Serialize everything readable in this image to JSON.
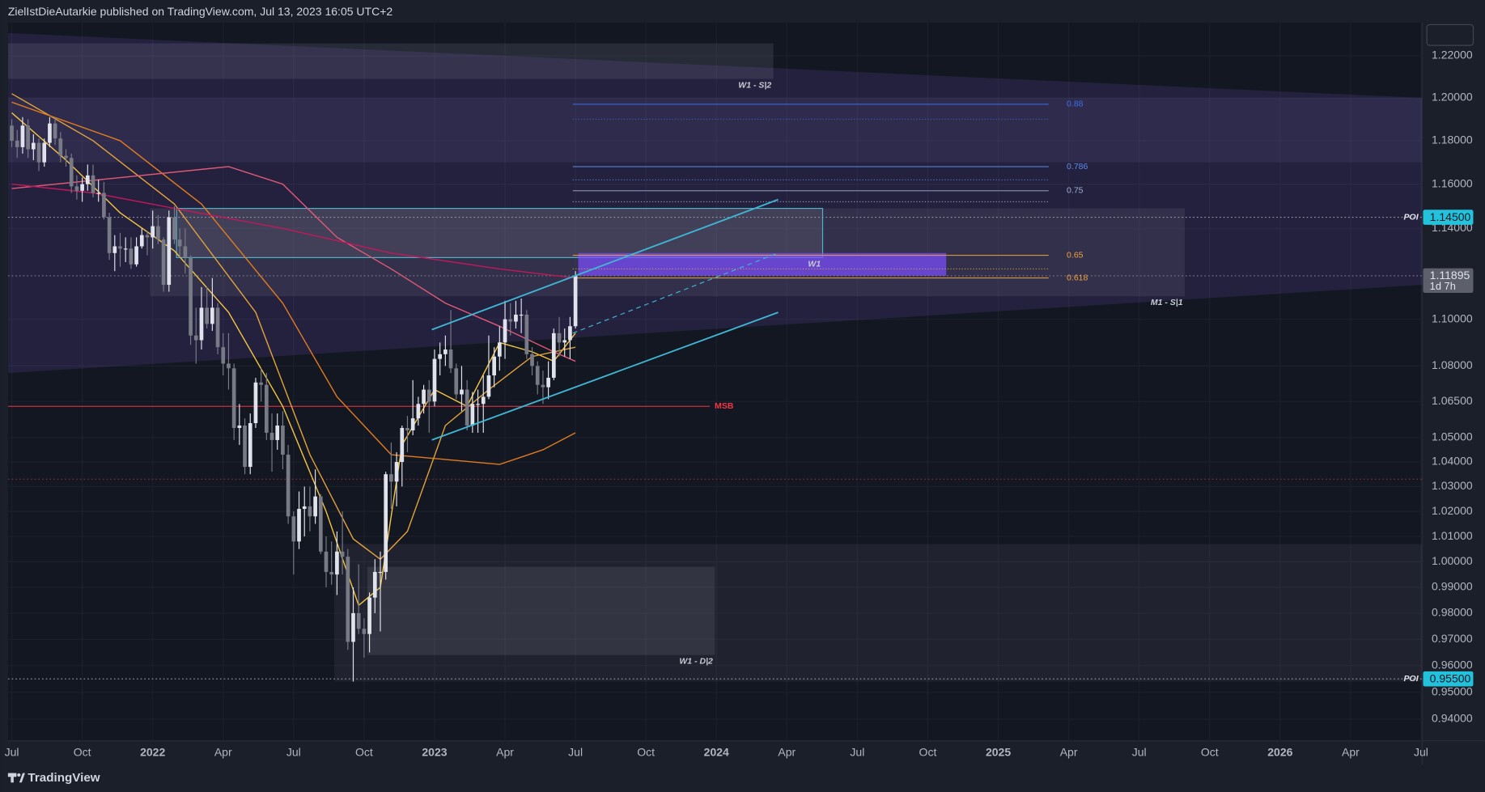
{
  "header": {
    "text": "ZielIstDieAutarkie published on TradingView.com, Jul 13, 2023 16:05 UTC+2"
  },
  "footer": {
    "brand": "TradingView"
  },
  "chart_data": {
    "type": "candlestick",
    "log_scale": true,
    "grid": true,
    "up_color": "#e0e3eb",
    "down_color": "#787b86",
    "xlim": [
      -0.7,
      260.2
    ],
    "xticks": [
      {
        "value": 0,
        "label": "Jul"
      },
      {
        "value": 13,
        "label": "Oct"
      },
      {
        "value": 26,
        "label": "2022"
      },
      {
        "value": 39,
        "label": "Apr"
      },
      {
        "value": 52,
        "label": "Jul"
      },
      {
        "value": 65,
        "label": "Oct"
      },
      {
        "value": 78,
        "label": "2023"
      },
      {
        "value": 91,
        "label": "Apr"
      },
      {
        "value": 104,
        "label": "Jul"
      },
      {
        "value": 117,
        "label": "Oct"
      },
      {
        "value": 130,
        "label": "2024"
      },
      {
        "value": 143,
        "label": "Apr"
      },
      {
        "value": 156,
        "label": "Jul"
      },
      {
        "value": 169,
        "label": "Oct"
      },
      {
        "value": 182,
        "label": "2025"
      },
      {
        "value": 195,
        "label": "Apr"
      },
      {
        "value": 208,
        "label": "Jul"
      },
      {
        "value": 221,
        "label": "Oct"
      },
      {
        "value": 234,
        "label": "2026"
      },
      {
        "value": 247,
        "label": "Apr"
      },
      {
        "value": 260,
        "label": "Jul"
      }
    ],
    "ylim": [
      0.932,
      1.236
    ],
    "yticks": [
      {
        "value": 0.94,
        "label": "0.94000"
      },
      {
        "value": 0.95,
        "label": "0.95000"
      },
      {
        "value": 0.96,
        "label": "0.96000"
      },
      {
        "value": 0.97,
        "label": "0.97000"
      },
      {
        "value": 0.98,
        "label": "0.98000"
      },
      {
        "value": 0.99,
        "label": "0.99000"
      },
      {
        "value": 1.0,
        "label": "1.00000"
      },
      {
        "value": 1.01,
        "label": "1.01000"
      },
      {
        "value": 1.02,
        "label": "1.02000"
      },
      {
        "value": 1.03,
        "label": "1.03000"
      },
      {
        "value": 1.04,
        "label": "1.04000"
      },
      {
        "value": 1.05,
        "label": "1.05000"
      },
      {
        "value": 1.065,
        "label": "1.06500"
      },
      {
        "value": 1.08,
        "label": "1.08000"
      },
      {
        "value": 1.1,
        "label": "1.10000"
      },
      {
        "value": 1.14,
        "label": "1.14000"
      },
      {
        "value": 1.16,
        "label": "1.16000"
      },
      {
        "value": 1.18,
        "label": "1.18000"
      },
      {
        "value": 1.2,
        "label": "1.20000"
      },
      {
        "value": 1.22,
        "label": "1.22000"
      }
    ],
    "open": [
      1.187,
      1.18,
      1.177,
      1.187,
      1.176,
      1.179,
      1.17,
      1.179,
      1.188,
      1.181,
      1.173,
      1.172,
      1.159,
      1.157,
      1.16,
      1.164,
      1.156,
      1.156,
      1.145,
      1.129,
      1.132,
      1.131,
      1.131,
      1.124,
      1.132,
      1.137,
      1.136,
      1.141,
      1.135,
      1.115,
      1.145,
      1.135,
      1.132,
      1.127,
      1.093,
      1.091,
      1.105,
      1.098,
      1.105,
      1.088,
      1.081,
      1.079,
      1.054,
      1.055,
      1.038,
      1.056,
      1.073,
      1.072,
      1.052,
      1.049,
      1.055,
      1.043,
      1.018,
      1.008,
      1.021,
      1.022,
      1.018,
      1.026,
      1.004,
      0.996,
      0.995,
      1.004,
      1.002,
      0.969,
      0.98,
      0.974,
      0.972,
      0.986,
      0.996,
      0.996,
      1.035,
      1.032,
      1.04,
      1.054,
      1.053,
      1.058,
      1.064,
      1.07,
      1.065,
      1.083,
      1.085,
      1.087,
      1.079,
      1.068,
      1.07,
      1.055,
      1.064,
      1.064,
      1.067,
      1.076,
      1.084,
      1.09,
      1.1,
      1.099,
      1.102,
      1.102,
      1.085,
      1.08,
      1.072,
      1.071,
      1.075,
      1.094,
      1.09,
      1.091,
      1.097
    ],
    "high": [
      1.19,
      1.185,
      1.191,
      1.19,
      1.183,
      1.181,
      1.181,
      1.191,
      1.191,
      1.184,
      1.176,
      1.174,
      1.164,
      1.163,
      1.169,
      1.169,
      1.162,
      1.161,
      1.147,
      1.137,
      1.138,
      1.136,
      1.136,
      1.136,
      1.14,
      1.139,
      1.148,
      1.146,
      1.136,
      1.148,
      1.15,
      1.14,
      1.14,
      1.128,
      1.105,
      1.114,
      1.114,
      1.118,
      1.107,
      1.094,
      1.094,
      1.081,
      1.064,
      1.058,
      1.06,
      1.075,
      1.079,
      1.077,
      1.06,
      1.06,
      1.061,
      1.047,
      1.02,
      1.028,
      1.03,
      1.03,
      1.037,
      1.027,
      1.01,
      1.008,
      1.012,
      1.02,
      1.005,
      0.99,
      0.999,
      0.978,
      0.988,
      1.001,
      1.004,
      1.036,
      1.048,
      1.044,
      1.055,
      1.059,
      1.074,
      1.067,
      1.072,
      1.074,
      1.087,
      1.09,
      1.093,
      1.104,
      1.081,
      1.08,
      1.074,
      1.069,
      1.07,
      1.076,
      1.093,
      1.088,
      1.097,
      1.108,
      1.107,
      1.108,
      1.109,
      1.104,
      1.088,
      1.082,
      1.078,
      1.082,
      1.096,
      1.101,
      1.096,
      1.101,
      1.121
    ],
    "low": [
      1.177,
      1.172,
      1.174,
      1.172,
      1.171,
      1.166,
      1.168,
      1.177,
      1.178,
      1.17,
      1.168,
      1.156,
      1.153,
      1.152,
      1.157,
      1.154,
      1.152,
      1.144,
      1.126,
      1.121,
      1.123,
      1.125,
      1.122,
      1.123,
      1.131,
      1.128,
      1.131,
      1.133,
      1.112,
      1.112,
      1.133,
      1.127,
      1.12,
      1.089,
      1.081,
      1.087,
      1.096,
      1.095,
      1.085,
      1.076,
      1.07,
      1.049,
      1.047,
      1.035,
      1.035,
      1.054,
      1.065,
      1.049,
      1.036,
      1.045,
      1.037,
      1.015,
      0.995,
      1.005,
      1.01,
      1.012,
      1.015,
      1.003,
      0.99,
      0.991,
      0.987,
      0.995,
      0.966,
      0.954,
      0.972,
      0.963,
      0.965,
      0.98,
      0.973,
      0.993,
      1.021,
      1.022,
      1.03,
      1.044,
      1.051,
      1.055,
      1.06,
      1.052,
      1.063,
      1.076,
      1.08,
      1.077,
      1.066,
      1.061,
      1.053,
      1.052,
      1.052,
      1.052,
      1.066,
      1.071,
      1.078,
      1.083,
      1.093,
      1.096,
      1.094,
      1.083,
      1.076,
      1.068,
      1.064,
      1.066,
      1.074,
      1.084,
      1.084,
      1.083,
      1.096
    ],
    "close": [
      1.18,
      1.177,
      1.187,
      1.176,
      1.179,
      1.17,
      1.179,
      1.188,
      1.181,
      1.173,
      1.172,
      1.159,
      1.157,
      1.16,
      1.164,
      1.156,
      1.156,
      1.145,
      1.129,
      1.132,
      1.131,
      1.131,
      1.124,
      1.132,
      1.137,
      1.136,
      1.141,
      1.135,
      1.115,
      1.145,
      1.135,
      1.132,
      1.127,
      1.093,
      1.091,
      1.105,
      1.098,
      1.105,
      1.088,
      1.081,
      1.079,
      1.054,
      1.055,
      1.038,
      1.056,
      1.073,
      1.072,
      1.052,
      1.049,
      1.055,
      1.043,
      1.018,
      1.008,
      1.021,
      1.022,
      1.018,
      1.026,
      1.004,
      0.996,
      0.995,
      1.004,
      1.002,
      0.969,
      0.98,
      0.974,
      0.972,
      0.986,
      0.996,
      0.996,
      1.035,
      1.032,
      1.04,
      1.054,
      1.053,
      1.058,
      1.064,
      1.07,
      1.065,
      1.083,
      1.085,
      1.087,
      1.079,
      1.068,
      1.07,
      1.055,
      1.064,
      1.064,
      1.067,
      1.076,
      1.084,
      1.09,
      1.1,
      1.099,
      1.102,
      1.102,
      1.085,
      1.08,
      1.072,
      1.071,
      1.075,
      1.094,
      1.09,
      1.091,
      1.097,
      1.119
    ],
    "moving_averages": [
      {
        "color": "#f5c542",
        "x": [
          0,
          10,
          20,
          30,
          40,
          50,
          58,
          64,
          68,
          72,
          78,
          84,
          90,
          96,
          100,
          104
        ],
        "values": [
          1.193,
          1.171,
          1.147,
          1.13,
          1.103,
          1.063,
          1.02,
          0.983,
          0.99,
          1.047,
          1.07,
          1.063,
          1.09,
          1.086,
          1.082,
          1.094
        ]
      },
      {
        "color": "#e3a33a",
        "x": [
          0,
          15,
          30,
          45,
          55,
          63,
          68,
          73,
          80,
          88,
          96,
          104
        ],
        "values": [
          1.202,
          1.18,
          1.151,
          1.103,
          1.043,
          1.009,
          1.001,
          1.012,
          1.055,
          1.07,
          1.084,
          1.088
        ]
      },
      {
        "color": "#e07b1f",
        "x": [
          0,
          20,
          35,
          50,
          60,
          70,
          80,
          90,
          98,
          104
        ],
        "values": [
          1.198,
          1.18,
          1.151,
          1.107,
          1.067,
          1.043,
          1.041,
          1.039,
          1.045,
          1.052
        ]
      },
      {
        "color": "#e05a78",
        "x": [
          0,
          20,
          40,
          50,
          60,
          70,
          80,
          90,
          100,
          104
        ],
        "values": [
          1.158,
          1.163,
          1.168,
          1.16,
          1.136,
          1.122,
          1.107,
          1.097,
          1.086,
          1.082
        ]
      },
      {
        "color": "#c2185b",
        "x": [
          0,
          15,
          30,
          50,
          70,
          90,
          104
        ],
        "values": [
          1.16,
          1.156,
          1.149,
          1.14,
          1.129,
          1.122,
          1.118
        ]
      }
    ],
    "band": {
      "x": [
        -0.7,
        260.2
      ],
      "upper": [
        1.231,
        1.2
      ],
      "lower": [
        1.077,
        1.115
      ],
      "fill": "rgba(98,72,170,0.22)"
    },
    "zones": [
      {
        "x": [
          -0.7,
          140.5
        ],
        "y": [
          1.209,
          1.226
        ],
        "fill": "rgba(150,152,165,0.16)",
        "label": "W1 - S|2"
      },
      {
        "x": [
          -0.7,
          260.2
        ],
        "y": [
          1.17,
          1.2
        ],
        "fill": "rgba(150,140,200,0.10)"
      },
      {
        "x": [
          25.5,
          216.4
        ],
        "y": [
          1.11,
          1.149
        ],
        "fill": "rgba(150,152,165,0.13)",
        "label": "M1 - S|1"
      },
      {
        "x": [
          30.4,
          149.6
        ],
        "y": [
          1.127,
          1.149
        ],
        "fill": "rgba(178,181,190,0.12)",
        "stroke": "#4fb3c8",
        "label": "W1"
      },
      {
        "x": [
          104.5,
          172.4
        ],
        "y": [
          1.119,
          1.129
        ],
        "fill": "rgba(124,77,255,0.72)"
      },
      {
        "x": [
          59.5,
          260.2
        ],
        "y": [
          0.954,
          1.007
        ],
        "fill": "rgba(150,152,165,0.10)"
      },
      {
        "x": [
          65.6,
          129.7
        ],
        "y": [
          0.964,
          0.998
        ],
        "fill": "rgba(178,181,190,0.13)",
        "label": "W1 - D|2"
      }
    ],
    "trend_lines": [
      {
        "x": [
          77.5,
          141.4
        ],
        "values": [
          1.0955,
          1.153
        ],
        "color": "#3fb6d3"
      },
      {
        "x": [
          77.5,
          141.4
        ],
        "values": [
          1.049,
          1.103
        ],
        "color": "#3fb6d3"
      },
      {
        "x": [
          103.5,
          141.4
        ],
        "values": [
          1.094,
          1.129
        ],
        "color": "#3fb6d3",
        "dash": true
      }
    ],
    "fib_x": [
      103.5,
      191.3
    ],
    "fib_levels": [
      {
        "level": 0.88,
        "price": 1.197,
        "color": "#3d6ee8"
      },
      {
        "level": null,
        "price": 1.19,
        "color": "#3d6ee8"
      },
      {
        "level": 0.786,
        "price": 1.168,
        "color": "#5b8be8"
      },
      {
        "level": null,
        "price": 1.162,
        "color": "#5b8be8"
      },
      {
        "level": 0.75,
        "price": 1.157,
        "color": "#a3aed0"
      },
      {
        "level": null,
        "price": 1.152,
        "color": "#a3aed0"
      },
      {
        "level": 0.65,
        "price": 1.128,
        "color": "#f0a040"
      },
      {
        "level": null,
        "price": 1.122,
        "color": "#f0a040"
      },
      {
        "level": 0.618,
        "price": 1.118,
        "color": "#f0a040"
      }
    ],
    "msb": {
      "price": 1.063,
      "x": [
        -0.7,
        128.8
      ],
      "color": "#f23645",
      "label": "MSB"
    },
    "hlines": [
      {
        "price": {
          "value": 1.145,
          "label": "1.14500"
        },
        "color": "#9598a1",
        "tag_color": "#22c1dc",
        "label": "POI"
      },
      {
        "price": {
          "value": 1.033,
          "label": null
        },
        "color": "#8b2a3a"
      },
      {
        "price": {
          "value": 0.955,
          "label": "0.95500"
        },
        "color": "#9598a1",
        "tag_color": "#22c1dc",
        "label": "POI"
      }
    ],
    "last_price": {
      "value": 1.11895,
      "label": "1.11895",
      "countdown": "1d 7h",
      "color": "#5d606b"
    }
  }
}
